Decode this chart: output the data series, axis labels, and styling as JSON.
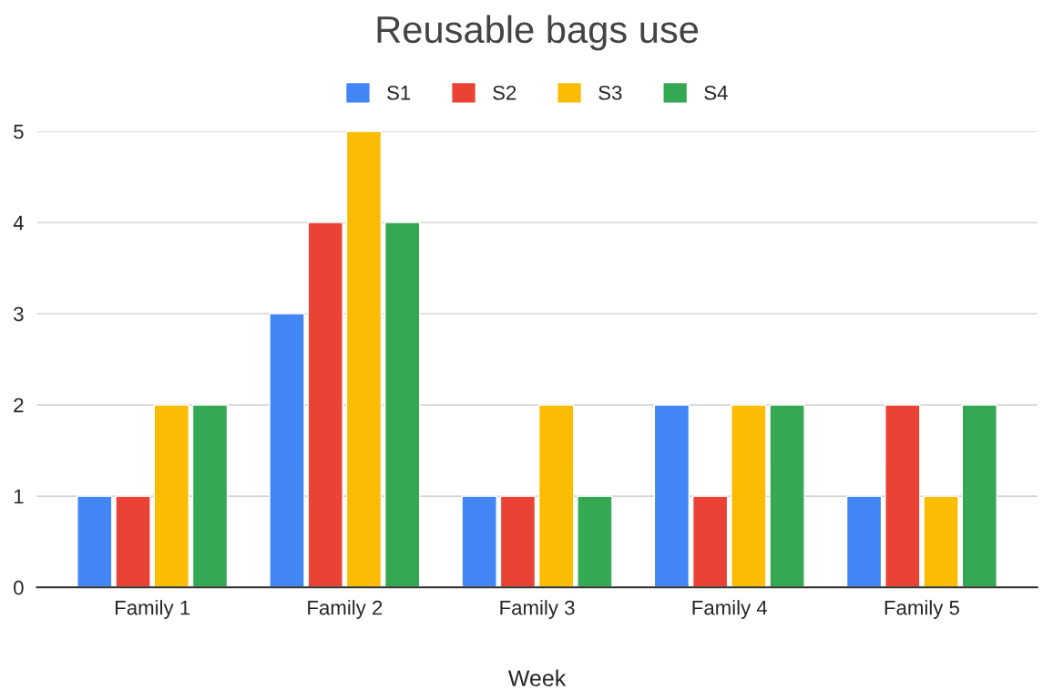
{
  "chart_data": {
    "type": "bar",
    "title": "Reusable bags use",
    "xlabel": "Week",
    "categories": [
      "Family 1",
      "Family 2",
      "Family 3",
      "Family 4",
      "Family 5"
    ],
    "series": [
      {
        "name": "S1",
        "color": "#4285f4",
        "values": [
          1,
          3,
          1,
          2,
          1
        ]
      },
      {
        "name": "S2",
        "color": "#ea4335",
        "values": [
          1,
          4,
          1,
          1,
          2
        ]
      },
      {
        "name": "S3",
        "color": "#fbbc04",
        "values": [
          2,
          5,
          2,
          2,
          1
        ]
      },
      {
        "name": "S4",
        "color": "#34a853",
        "values": [
          2,
          4,
          1,
          2,
          2
        ]
      }
    ],
    "ylim": [
      0,
      5
    ],
    "yticks": [
      0,
      1,
      2,
      3,
      4,
      5
    ],
    "grid": "y",
    "legend": "top"
  }
}
